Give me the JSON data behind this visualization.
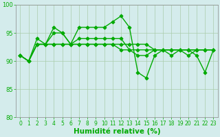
{
  "series1": [
    91,
    90,
    93,
    93,
    96,
    95,
    93,
    96,
    96,
    96,
    96,
    97,
    98,
    96,
    88,
    87,
    91,
    92,
    91,
    92,
    91,
    92,
    92,
    92
  ],
  "series2": [
    91,
    90,
    94,
    93,
    93,
    93,
    93,
    94,
    94,
    94,
    94,
    94,
    94,
    92,
    92,
    92,
    92,
    92,
    92,
    92,
    92,
    92,
    92,
    92
  ],
  "series3": [
    91,
    90,
    93,
    93,
    95,
    95,
    93,
    93,
    93,
    93,
    93,
    93,
    93,
    93,
    93,
    93,
    92,
    92,
    92,
    92,
    92,
    92,
    92,
    92
  ],
  "series4": [
    91,
    90,
    93,
    93,
    93,
    93,
    93,
    93,
    93,
    93,
    93,
    93,
    92,
    92,
    91,
    91,
    92,
    92,
    92,
    92,
    92,
    91,
    88,
    92
  ],
  "xlim": [
    -0.5,
    23.5
  ],
  "ylim": [
    80,
    100
  ],
  "xlabel": "Humidité relative (%)",
  "yticks": [
    80,
    85,
    90,
    95,
    100
  ],
  "xticks": [
    0,
    1,
    2,
    3,
    4,
    5,
    6,
    7,
    8,
    9,
    10,
    11,
    12,
    13,
    14,
    15,
    16,
    17,
    18,
    19,
    20,
    21,
    22,
    23
  ],
  "grid_color": "#aaccaa",
  "bg_color": "#d4ecec",
  "line_color": "#00aa00",
  "marker": "D",
  "markersize": 2.5,
  "linewidth": 1.0,
  "tick_fontsize": 5.5,
  "xlabel_fontsize": 7.5
}
